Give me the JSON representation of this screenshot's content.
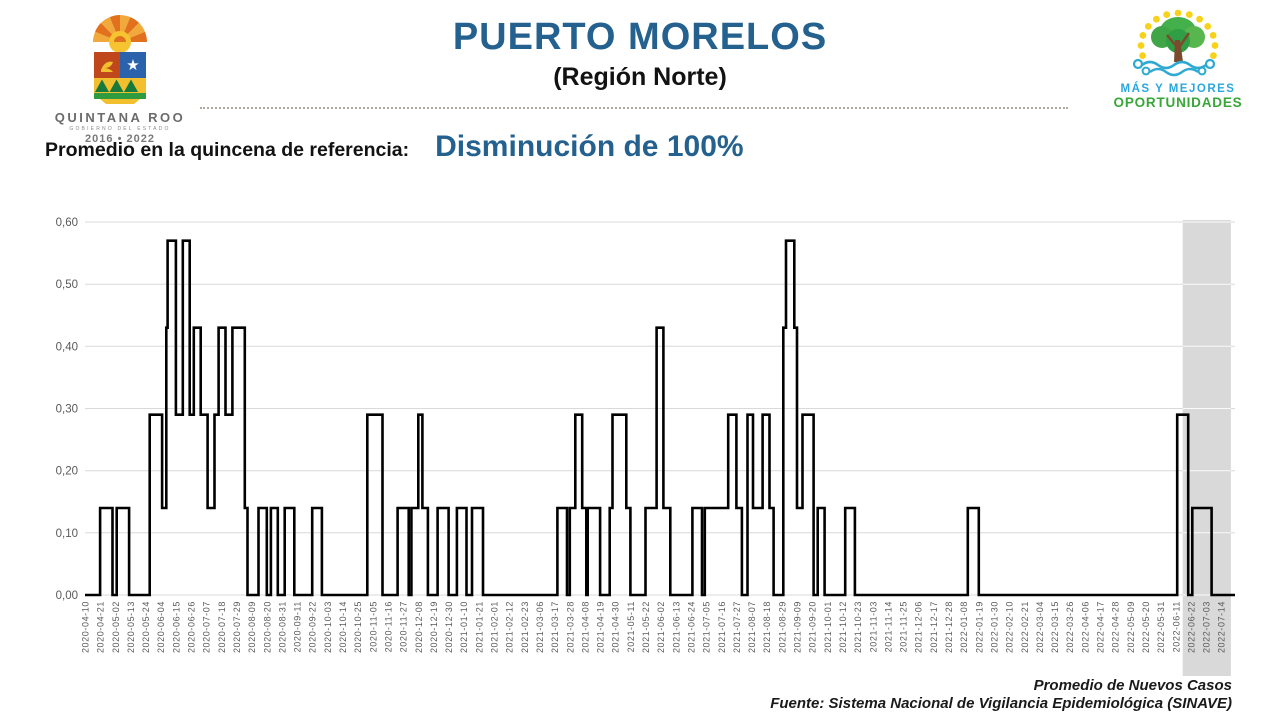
{
  "header": {
    "title": "PUERTO MORELOS",
    "region": "(Región Norte)",
    "logo_quintana_roo": {
      "name": "QUINTANA ROO",
      "subtitle": "GOBIERNO DEL ESTADO",
      "years": "2016 • 2022"
    },
    "logo_oportunidades": {
      "line1": "MÁS Y MEJORES",
      "line2": "OPORTUNIDADES"
    }
  },
  "summary": {
    "label": "Promedio en la quincena de referencia:",
    "value": "Disminución de 100%",
    "value_color": "#24618E"
  },
  "footer": {
    "caption": "Promedio de Nuevos Casos",
    "source": "Fuente: Sistema Nacional de Vigilancia Epidemiológica (SINAVE)"
  },
  "chart_data": {
    "type": "line",
    "step": true,
    "title": "",
    "xlabel": "",
    "ylabel": "",
    "ylim": [
      0,
      0.6
    ],
    "grid": true,
    "line_color": "#000000",
    "tick_label_color": "#595959",
    "gridline_color": "#d9d9d9",
    "start_date": "2020-04-10",
    "end_date": "2022-07-14",
    "tick_interval_days": 11,
    "y_tick_values": [
      0,
      0.1,
      0.2,
      0.3,
      0.4,
      0.5,
      0.6
    ],
    "y_tick_labels": [
      "0,00",
      "0,10",
      "0,20",
      "0,30",
      "0,40",
      "0,50",
      "0,60"
    ],
    "observed_levels": [
      0,
      0.14,
      0.29,
      0.43,
      0.57
    ],
    "x_tick_labels": [
      "2020-04-10",
      "2020-04-21",
      "2020-05-02",
      "2020-05-13",
      "2020-05-24",
      "2020-06-04",
      "2020-06-15",
      "2020-06-26",
      "2020-07-07",
      "2020-07-18",
      "2020-07-29",
      "2020-08-09",
      "2020-08-20",
      "2020-08-31",
      "2020-09-11",
      "2020-09-22",
      "2020-10-03",
      "2020-10-14",
      "2020-10-25",
      "2020-11-05",
      "2020-11-16",
      "2020-11-27",
      "2020-12-08",
      "2020-12-19",
      "2020-12-30",
      "2021-01-10",
      "2021-01-21",
      "2021-02-01",
      "2021-02-12",
      "2021-02-23",
      "2021-03-06",
      "2021-03-17",
      "2021-03-28",
      "2021-04-08",
      "2021-04-19",
      "2021-04-30",
      "2021-05-11",
      "2021-05-22",
      "2021-06-02",
      "2021-06-13",
      "2021-06-24",
      "2021-07-05",
      "2021-07-16",
      "2021-07-27",
      "2021-08-07",
      "2021-08-18",
      "2021-08-29",
      "2021-09-09",
      "2021-09-20",
      "2021-10-01",
      "2021-10-12",
      "2021-10-23",
      "2021-11-03",
      "2021-11-14",
      "2021-11-25",
      "2021-12-06",
      "2021-12-17",
      "2021-12-28",
      "2022-01-08",
      "2022-01-19",
      "2022-01-30",
      "2022-02-10",
      "2022-02-21",
      "2022-03-04",
      "2022-03-15",
      "2022-03-26",
      "2022-04-06",
      "2022-04-17",
      "2022-04-28",
      "2022-05-09",
      "2022-05-20",
      "2022-05-31",
      "2022-06-11",
      "2022-06-22",
      "2022-07-03",
      "2022-07-14"
    ],
    "highlight_band": {
      "from_day": 797,
      "to_day": 832,
      "color": "#d9d9d9",
      "labels_covered": [
        "2022-06-22",
        "2022-07-03",
        "2022-07-14"
      ]
    },
    "series_runs": [
      [
        0,
        11
      ],
      [
        0.14,
        9
      ],
      [
        0,
        3
      ],
      [
        0.14,
        9
      ],
      [
        0,
        15
      ],
      [
        0.29,
        9
      ],
      [
        0.14,
        3
      ],
      [
        0.43,
        1
      ],
      [
        0.57,
        6
      ],
      [
        0.29,
        5
      ],
      [
        0.57,
        5
      ],
      [
        0.29,
        3
      ],
      [
        0.43,
        5
      ],
      [
        0.29,
        5
      ],
      [
        0.14,
        5
      ],
      [
        0.29,
        3
      ],
      [
        0.43,
        5
      ],
      [
        0.29,
        5
      ],
      [
        0.43,
        9
      ],
      [
        0.14,
        2
      ],
      [
        0,
        8
      ],
      [
        0.14,
        6
      ],
      [
        0,
        3
      ],
      [
        0.14,
        5
      ],
      [
        0,
        5
      ],
      [
        0.14,
        7
      ],
      [
        0,
        13
      ],
      [
        0.14,
        7
      ],
      [
        0,
        33
      ],
      [
        0.29,
        11
      ],
      [
        0,
        11
      ],
      [
        0.14,
        8
      ],
      [
        0,
        2
      ],
      [
        0.14,
        5
      ],
      [
        0.29,
        3
      ],
      [
        0.14,
        4
      ],
      [
        0,
        7
      ],
      [
        0.14,
        8
      ],
      [
        0,
        6
      ],
      [
        0.14,
        7
      ],
      [
        0,
        4
      ],
      [
        0.14,
        8
      ],
      [
        0,
        54
      ],
      [
        0.14,
        7
      ],
      [
        0,
        2
      ],
      [
        0.14,
        4
      ],
      [
        0.29,
        5
      ],
      [
        0.14,
        3
      ],
      [
        0,
        1
      ],
      [
        0.14,
        9
      ],
      [
        0,
        7
      ],
      [
        0.14,
        2
      ],
      [
        0.29,
        10
      ],
      [
        0.14,
        3
      ],
      [
        0,
        11
      ],
      [
        0.14,
        8
      ],
      [
        0.43,
        5
      ],
      [
        0.14,
        5
      ],
      [
        0,
        16
      ],
      [
        0.14,
        7
      ],
      [
        0,
        2
      ],
      [
        0.14,
        17
      ],
      [
        0.29,
        6
      ],
      [
        0.14,
        4
      ],
      [
        0,
        4
      ],
      [
        0.29,
        4
      ],
      [
        0.14,
        7
      ],
      [
        0.29,
        5
      ],
      [
        0.14,
        3
      ],
      [
        0,
        7
      ],
      [
        0.43,
        2
      ],
      [
        0.57,
        6
      ],
      [
        0.43,
        2
      ],
      [
        0.14,
        4
      ],
      [
        0.29,
        8
      ],
      [
        0,
        3
      ],
      [
        0.14,
        5
      ],
      [
        0,
        15
      ],
      [
        0.14,
        7
      ],
      [
        0,
        82
      ],
      [
        0.14,
        8
      ],
      [
        0,
        144
      ],
      [
        0.29,
        8
      ],
      [
        0,
        3
      ],
      [
        0.14,
        14
      ],
      [
        0,
        17
      ]
    ]
  }
}
